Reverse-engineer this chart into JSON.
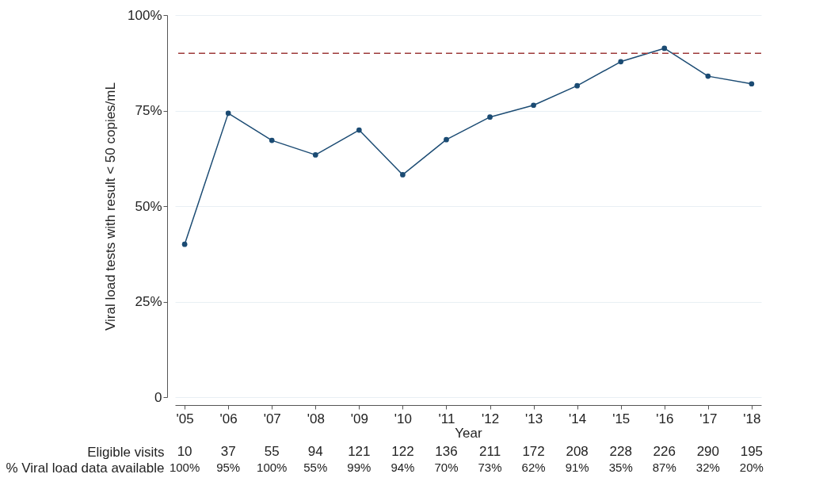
{
  "chart_data": {
    "type": "line",
    "xlabel": "Year",
    "ylabel": "Viral load tests with result < 50 copies/mL",
    "categories": [
      "'05",
      "'06",
      "'07",
      "'08",
      "'09",
      "'10",
      "'11",
      "'12",
      "'13",
      "'14",
      "'15",
      "'16",
      "'17",
      "'18"
    ],
    "series": [
      {
        "color": "#1b4b73",
        "values": [
          40,
          74.3,
          67.2,
          63.4,
          69.9,
          58.2,
          67.4,
          73.3,
          76.4,
          81.5,
          87.8,
          91.3,
          84.0,
          82.0
        ]
      }
    ],
    "ylim": [
      0,
      100
    ],
    "yticks": [
      0,
      {
        "value": 25,
        "label": "25%"
      },
      {
        "value": 50,
        "label": "50%"
      },
      {
        "value": 75,
        "label": "75%"
      },
      {
        "value": 100,
        "label": "100%"
      }
    ],
    "grid": "y",
    "marker": "circle",
    "line_style": "solid",
    "ref_lines": [
      {
        "axis": "y",
        "value": 90,
        "color": "#9e3a3a",
        "line_style": "dashed"
      }
    ],
    "annotations": [
      "Eligible visits",
      "10",
      "37",
      "55",
      "94",
      "121",
      "122",
      "136",
      "211",
      "172",
      "208",
      "228",
      "226",
      "290",
      "195",
      "% Viral load data available",
      "100%",
      "95%",
      "100%",
      "55%",
      "99%",
      "94%",
      "70%",
      "73%",
      "62%",
      "91%",
      "35%",
      "87%",
      "32%",
      "20%"
    ]
  }
}
